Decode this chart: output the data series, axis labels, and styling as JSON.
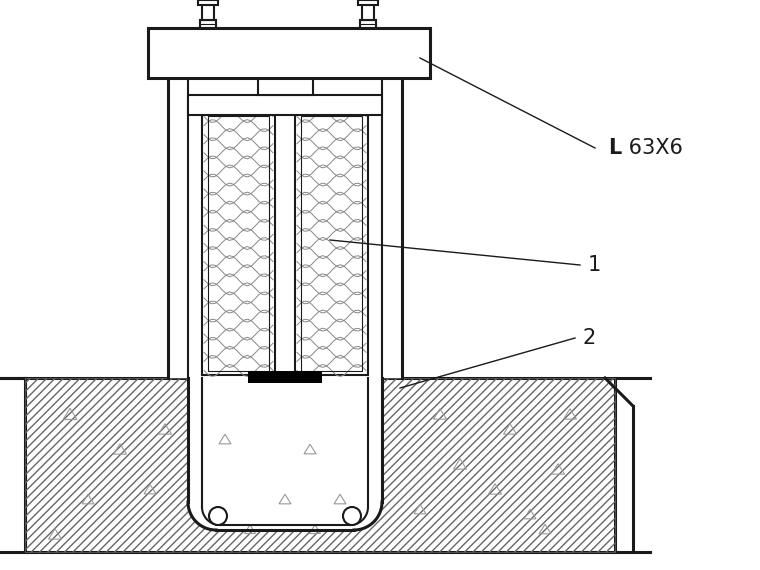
{
  "fig_width": 7.6,
  "fig_height": 5.7,
  "dpi": 100,
  "bg_color": "#ffffff",
  "line_color": "#1a1a1a",
  "label_1": "1",
  "label_2": "2",
  "label_L_bold": "L",
  "label_L63X6": " 63X6"
}
